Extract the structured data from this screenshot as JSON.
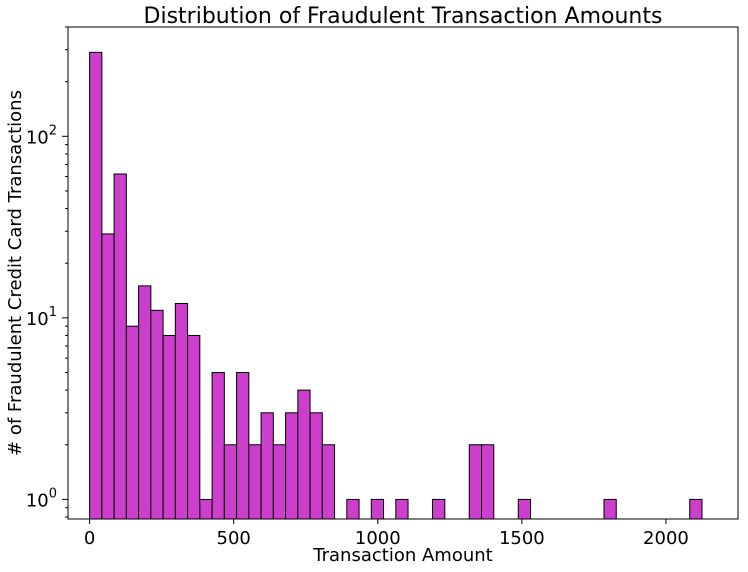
{
  "chart_data": {
    "type": "bar",
    "title": "Distribution of Fraudulent Transaction Amounts",
    "xlabel": "Transaction Amount",
    "ylabel": "# of Fraudulent Credit Card Transactions",
    "yscale": "log",
    "xlim": [
      -75,
      2250
    ],
    "ylim": [
      0.78,
      400
    ],
    "bar_color": "#cc3ecc",
    "edge_color": "#000000",
    "bin_width": 42.5,
    "bins": [
      {
        "x0": 0,
        "count": 290
      },
      {
        "x0": 42.5,
        "count": 29
      },
      {
        "x0": 85,
        "count": 62
      },
      {
        "x0": 127.5,
        "count": 9
      },
      {
        "x0": 170,
        "count": 15
      },
      {
        "x0": 212.5,
        "count": 11
      },
      {
        "x0": 255,
        "count": 8
      },
      {
        "x0": 297.5,
        "count": 12
      },
      {
        "x0": 340,
        "count": 8
      },
      {
        "x0": 382.5,
        "count": 1
      },
      {
        "x0": 425,
        "count": 5
      },
      {
        "x0": 467.5,
        "count": 2
      },
      {
        "x0": 510,
        "count": 5
      },
      {
        "x0": 552.5,
        "count": 2
      },
      {
        "x0": 595,
        "count": 3
      },
      {
        "x0": 637.5,
        "count": 2
      },
      {
        "x0": 680,
        "count": 3
      },
      {
        "x0": 722.5,
        "count": 4
      },
      {
        "x0": 765,
        "count": 3
      },
      {
        "x0": 807.5,
        "count": 2
      },
      {
        "x0": 892.5,
        "count": 1
      },
      {
        "x0": 977.5,
        "count": 1
      },
      {
        "x0": 1062.5,
        "count": 1
      },
      {
        "x0": 1190,
        "count": 1
      },
      {
        "x0": 1317.5,
        "count": 2
      },
      {
        "x0": 1360,
        "count": 2
      },
      {
        "x0": 1487.5,
        "count": 1
      },
      {
        "x0": 1785,
        "count": 1
      },
      {
        "x0": 2082.5,
        "count": 1
      }
    ],
    "x_ticks": [
      {
        "value": 0,
        "label": "0"
      },
      {
        "value": 500,
        "label": "500"
      },
      {
        "value": 1000,
        "label": "1000"
      },
      {
        "value": 1500,
        "label": "1500"
      },
      {
        "value": 2000,
        "label": "2000"
      }
    ],
    "y_major_ticks": [
      {
        "value": 1,
        "base": "10",
        "exp": "0"
      },
      {
        "value": 10,
        "base": "10",
        "exp": "1"
      },
      {
        "value": 100,
        "base": "10",
        "exp": "2"
      }
    ],
    "grid": false,
    "legend": "none"
  }
}
